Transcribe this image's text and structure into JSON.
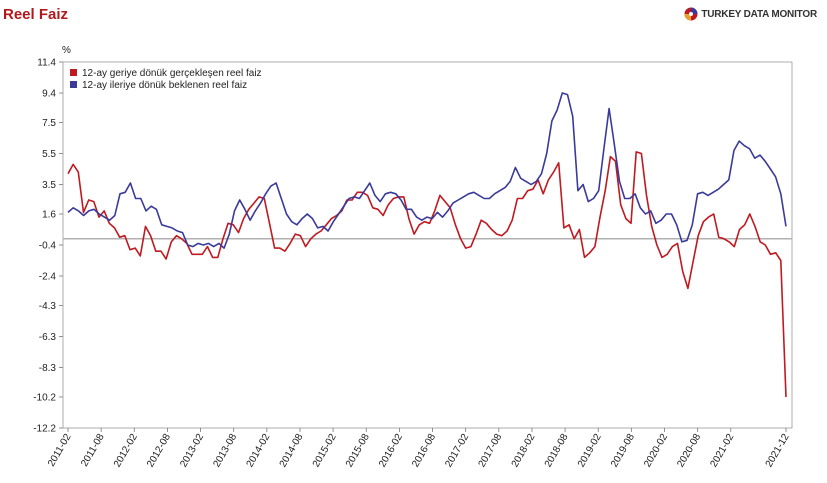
{
  "header": {
    "title": "Reel Faiz",
    "brand": "TURKEY DATA MONITOR",
    "brand_icon": "globe-logo-icon"
  },
  "colors": {
    "realized": "#c0191f",
    "expected": "#3a3a9a",
    "zero_line": "#b0b0b0",
    "title": "#b3191b"
  },
  "chart_data": {
    "type": "line",
    "ylabel": "%",
    "y_ticks": [
      "11.4",
      "9.4",
      "7.5",
      "5.5",
      "3.5",
      "1.6",
      "-0.4",
      "-2.4",
      "-4.3",
      "-6.3",
      "-8.3",
      "-10.2",
      "-12.2"
    ],
    "ylim": [
      -12.2,
      11.4
    ],
    "x_ticks": [
      "2011-02",
      "2011-08",
      "2012-02",
      "2012-08",
      "2013-02",
      "2013-08",
      "2014-02",
      "2014-08",
      "2015-02",
      "2015-08",
      "2016-02",
      "2016-08",
      "2017-02",
      "2017-08",
      "2018-02",
      "2018-08",
      "2019-02",
      "2019-08",
      "2020-02",
      "2020-08",
      "2021-02",
      "2021-12"
    ],
    "x_start": "2011-02",
    "x_end": "2021-12",
    "grid": false,
    "legend_position": "top-left",
    "series": [
      {
        "name": "12-ay geriye dönük gerçekleşen reel faiz",
        "color": "#c0191f",
        "values": [
          4.2,
          4.8,
          4.3,
          1.7,
          2.5,
          2.4,
          1.4,
          1.8,
          1.0,
          0.7,
          0.1,
          0.2,
          -0.7,
          -0.6,
          -1.1,
          0.8,
          0.2,
          -0.8,
          -0.8,
          -1.3,
          -0.2,
          0.2,
          0.0,
          -0.3,
          -1.0,
          -1.0,
          -1.0,
          -0.5,
          -1.2,
          -1.2,
          0.0,
          1.0,
          0.9,
          0.4,
          1.3,
          1.9,
          2.3,
          2.7,
          2.6,
          1.0,
          -0.6,
          -0.6,
          -0.8,
          -0.3,
          0.3,
          0.2,
          -0.5,
          0.0,
          0.3,
          0.5,
          0.9,
          1.3,
          1.5,
          1.8,
          2.5,
          2.5,
          3.0,
          3.0,
          2.8,
          2.0,
          1.9,
          1.5,
          2.2,
          2.6,
          2.7,
          2.7,
          1.3,
          0.3,
          0.9,
          1.1,
          1.0,
          1.8,
          2.8,
          2.4,
          2.0,
          0.9,
          0.0,
          -0.6,
          -0.5,
          0.3,
          1.2,
          1.0,
          0.6,
          0.3,
          0.2,
          0.5,
          1.2,
          2.6,
          2.6,
          3.1,
          3.2,
          3.8,
          2.9,
          3.8,
          4.3,
          4.9,
          0.7,
          0.9,
          0.0,
          0.6,
          -1.2,
          -0.9,
          -0.5,
          1.4,
          3.1,
          5.3,
          5.0,
          2.2,
          1.3,
          1.0,
          5.6,
          5.5,
          2.8,
          0.8,
          -0.4,
          -1.2,
          -1.0,
          -0.5,
          -0.3,
          -2.1,
          -3.2,
          -1.5,
          0.2,
          1.1,
          1.4,
          1.6,
          0.1,
          0.0,
          -0.2,
          -0.5,
          0.6,
          0.9,
          1.6,
          0.8,
          -0.2,
          -0.4,
          -1.0,
          -0.9,
          -1.4,
          -10.2
        ]
      },
      {
        "name": "12-ay ileriye dönük beklenen reel faiz",
        "color": "#3a3a9a",
        "values": [
          1.7,
          2.0,
          1.8,
          1.5,
          1.8,
          1.9,
          1.6,
          1.4,
          1.2,
          1.5,
          2.9,
          3.0,
          3.6,
          2.6,
          2.6,
          1.8,
          2.1,
          1.9,
          0.9,
          0.8,
          0.7,
          0.5,
          0.4,
          -0.4,
          -0.5,
          -0.3,
          -0.4,
          -0.3,
          -0.5,
          -0.3,
          -0.6,
          0.3,
          1.8,
          2.5,
          1.9,
          1.2,
          1.8,
          2.3,
          2.9,
          3.4,
          3.6,
          2.6,
          1.6,
          1.1,
          0.9,
          1.3,
          1.6,
          1.3,
          0.7,
          0.8,
          0.5,
          1.1,
          1.6,
          2.1,
          2.6,
          2.7,
          2.6,
          3.1,
          3.6,
          2.8,
          2.4,
          2.9,
          3.0,
          2.9,
          2.5,
          1.9,
          1.9,
          1.4,
          1.2,
          1.4,
          1.3,
          1.7,
          1.4,
          1.8,
          2.3,
          2.5,
          2.7,
          2.9,
          3.0,
          2.8,
          2.6,
          2.6,
          2.9,
          3.1,
          3.3,
          3.7,
          4.6,
          3.9,
          3.7,
          3.5,
          3.7,
          4.2,
          5.5,
          7.6,
          8.3,
          9.4,
          9.3,
          7.9,
          3.1,
          3.5,
          2.4,
          2.6,
          3.1,
          5.8,
          8.4,
          6.1,
          3.7,
          2.6,
          2.6,
          2.9,
          2.0,
          1.6,
          1.8,
          1.0,
          1.2,
          1.6,
          1.6,
          0.9,
          -0.2,
          -0.1,
          0.9,
          2.9,
          3.0,
          2.8,
          3.0,
          3.2,
          3.5,
          3.8,
          5.7,
          6.3,
          6.0,
          5.8,
          5.2,
          5.4,
          5.0,
          4.5,
          4.0,
          2.9,
          0.8
        ]
      }
    ]
  }
}
